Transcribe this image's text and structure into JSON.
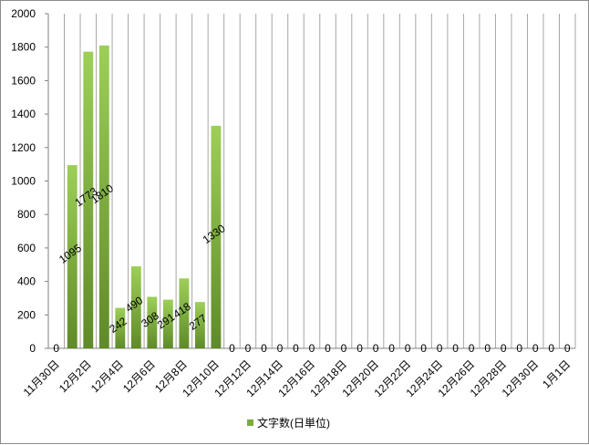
{
  "chart_data": {
    "type": "bar",
    "title": "",
    "xlabel": "",
    "ylabel": "",
    "ylim": [
      0,
      2000
    ],
    "yticks": [
      0,
      200,
      400,
      600,
      800,
      1000,
      1200,
      1400,
      1600,
      1800,
      2000
    ],
    "grid": "vertical",
    "legend_position": "bottom",
    "categories": [
      "11月30日",
      "12月1日",
      "12月2日",
      "12月3日",
      "12月4日",
      "12月5日",
      "12月6日",
      "12月7日",
      "12月8日",
      "12月9日",
      "12月10日",
      "12月11日",
      "12月12日",
      "12月13日",
      "12月14日",
      "12月15日",
      "12月16日",
      "12月17日",
      "12月18日",
      "12月19日",
      "12月20日",
      "12月21日",
      "12月22日",
      "12月23日",
      "12月24日",
      "12月25日",
      "12月26日",
      "12月27日",
      "12月28日",
      "12月29日",
      "12月30日",
      "12月31日",
      "1月1日"
    ],
    "shown_tick_labels": [
      "11月30日",
      "12月2日",
      "12月4日",
      "12月6日",
      "12月8日",
      "12月10日",
      "12月12日",
      "12月14日",
      "12月16日",
      "12月18日",
      "12月20日",
      "12月22日",
      "12月24日",
      "12月26日",
      "12月28日",
      "12月30日",
      "1月1日"
    ],
    "series": [
      {
        "name": "文字数(日単位)",
        "color": "#7aab3a",
        "values": [
          0,
          1095,
          1773,
          1810,
          242,
          490,
          308,
          291,
          418,
          277,
          1330,
          0,
          0,
          0,
          0,
          0,
          0,
          0,
          0,
          0,
          0,
          0,
          0,
          0,
          0,
          0,
          0,
          0,
          0,
          0,
          0,
          0,
          0
        ]
      }
    ]
  }
}
